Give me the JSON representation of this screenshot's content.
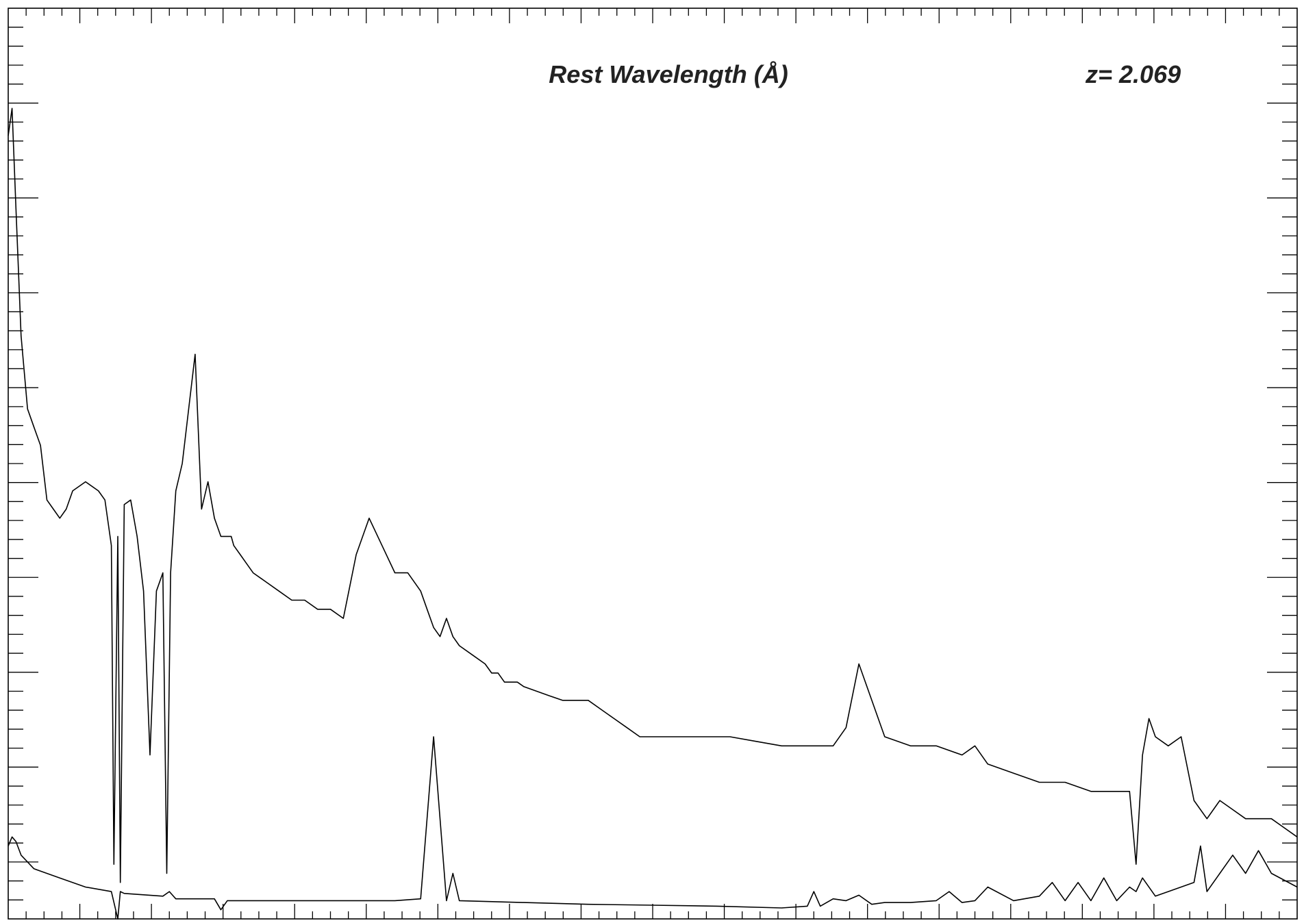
{
  "chart_data": {
    "type": "line",
    "title": "",
    "top_axis_label": "Rest Wavelength (Å)",
    "redshift_label": "z= 2.069",
    "redshift": 2.069,
    "xlabel": "",
    "ylabel": "",
    "grid": false,
    "legend": "none",
    "xlim": [
      0,
      1
    ],
    "ylim": [
      0,
      1
    ],
    "series": [
      {
        "role": "flux",
        "x": [
          0.0,
          0.003,
          0.006,
          0.01,
          0.015,
          0.02,
          0.025,
          0.03,
          0.035,
          0.04,
          0.045,
          0.05,
          0.06,
          0.07,
          0.075,
          0.08,
          0.082,
          0.085,
          0.087,
          0.09,
          0.095,
          0.1,
          0.105,
          0.11,
          0.115,
          0.12,
          0.123,
          0.126,
          0.13,
          0.135,
          0.14,
          0.145,
          0.15,
          0.155,
          0.16,
          0.165,
          0.168,
          0.17,
          0.173,
          0.175,
          0.18,
          0.185,
          0.19,
          0.2,
          0.21,
          0.22,
          0.23,
          0.24,
          0.25,
          0.26,
          0.27,
          0.28,
          0.29,
          0.3,
          0.31,
          0.32,
          0.325,
          0.33,
          0.335,
          0.34,
          0.345,
          0.35,
          0.36,
          0.37,
          0.375,
          0.38,
          0.385,
          0.39,
          0.395,
          0.4,
          0.41,
          0.42,
          0.43,
          0.44,
          0.45,
          0.46,
          0.47,
          0.48,
          0.49,
          0.5,
          0.52,
          0.54,
          0.56,
          0.58,
          0.6,
          0.62,
          0.64,
          0.65,
          0.66,
          0.68,
          0.7,
          0.72,
          0.74,
          0.75,
          0.76,
          0.78,
          0.8,
          0.82,
          0.84,
          0.85,
          0.86,
          0.87,
          0.875,
          0.88,
          0.885,
          0.89,
          0.9,
          0.91,
          0.92,
          0.93,
          0.94,
          0.95,
          0.96,
          0.97,
          0.98,
          0.99,
          1.0
        ],
        "y": [
          0.86,
          0.89,
          0.78,
          0.64,
          0.56,
          0.54,
          0.52,
          0.46,
          0.45,
          0.44,
          0.45,
          0.47,
          0.48,
          0.47,
          0.46,
          0.41,
          0.06,
          0.42,
          0.04,
          0.455,
          0.46,
          0.42,
          0.36,
          0.18,
          0.36,
          0.38,
          0.05,
          0.38,
          0.47,
          0.5,
          0.56,
          0.62,
          0.45,
          0.48,
          0.44,
          0.42,
          0.42,
          0.42,
          0.42,
          0.41,
          0.4,
          0.39,
          0.38,
          0.37,
          0.36,
          0.35,
          0.35,
          0.34,
          0.34,
          0.33,
          0.4,
          0.44,
          0.41,
          0.38,
          0.38,
          0.36,
          0.34,
          0.32,
          0.31,
          0.33,
          0.31,
          0.3,
          0.29,
          0.28,
          0.27,
          0.27,
          0.26,
          0.26,
          0.26,
          0.255,
          0.25,
          0.245,
          0.24,
          0.24,
          0.24,
          0.23,
          0.22,
          0.21,
          0.2,
          0.2,
          0.2,
          0.2,
          0.2,
          0.195,
          0.19,
          0.19,
          0.19,
          0.21,
          0.28,
          0.2,
          0.19,
          0.19,
          0.18,
          0.19,
          0.17,
          0.16,
          0.15,
          0.15,
          0.14,
          0.14,
          0.14,
          0.14,
          0.06,
          0.18,
          0.22,
          0.2,
          0.19,
          0.2,
          0.13,
          0.11,
          0.13,
          0.12,
          0.11,
          0.11,
          0.11,
          0.1,
          0.09
        ]
      },
      {
        "role": "error",
        "x": [
          0.0,
          0.003,
          0.006,
          0.01,
          0.02,
          0.04,
          0.06,
          0.08,
          0.085,
          0.087,
          0.09,
          0.12,
          0.125,
          0.13,
          0.16,
          0.165,
          0.17,
          0.2,
          0.25,
          0.3,
          0.32,
          0.33,
          0.34,
          0.345,
          0.35,
          0.4,
          0.45,
          0.5,
          0.55,
          0.6,
          0.62,
          0.625,
          0.63,
          0.64,
          0.65,
          0.66,
          0.67,
          0.68,
          0.7,
          0.72,
          0.73,
          0.74,
          0.75,
          0.76,
          0.78,
          0.8,
          0.81,
          0.82,
          0.83,
          0.84,
          0.85,
          0.86,
          0.87,
          0.875,
          0.88,
          0.89,
          0.9,
          0.92,
          0.925,
          0.93,
          0.94,
          0.95,
          0.96,
          0.97,
          0.98,
          1.0
        ],
        "y": [
          0.08,
          0.09,
          0.085,
          0.07,
          0.055,
          0.045,
          0.035,
          0.03,
          0.0,
          0.03,
          0.028,
          0.025,
          0.03,
          0.022,
          0.022,
          0.01,
          0.02,
          0.02,
          0.02,
          0.02,
          0.022,
          0.2,
          0.02,
          0.05,
          0.02,
          0.018,
          0.016,
          0.015,
          0.014,
          0.012,
          0.014,
          0.03,
          0.014,
          0.022,
          0.02,
          0.026,
          0.016,
          0.018,
          0.018,
          0.02,
          0.03,
          0.018,
          0.02,
          0.035,
          0.02,
          0.025,
          0.04,
          0.02,
          0.04,
          0.02,
          0.045,
          0.02,
          0.035,
          0.03,
          0.045,
          0.025,
          0.03,
          0.04,
          0.08,
          0.03,
          0.05,
          0.07,
          0.05,
          0.075,
          0.05,
          0.035
        ]
      }
    ]
  }
}
